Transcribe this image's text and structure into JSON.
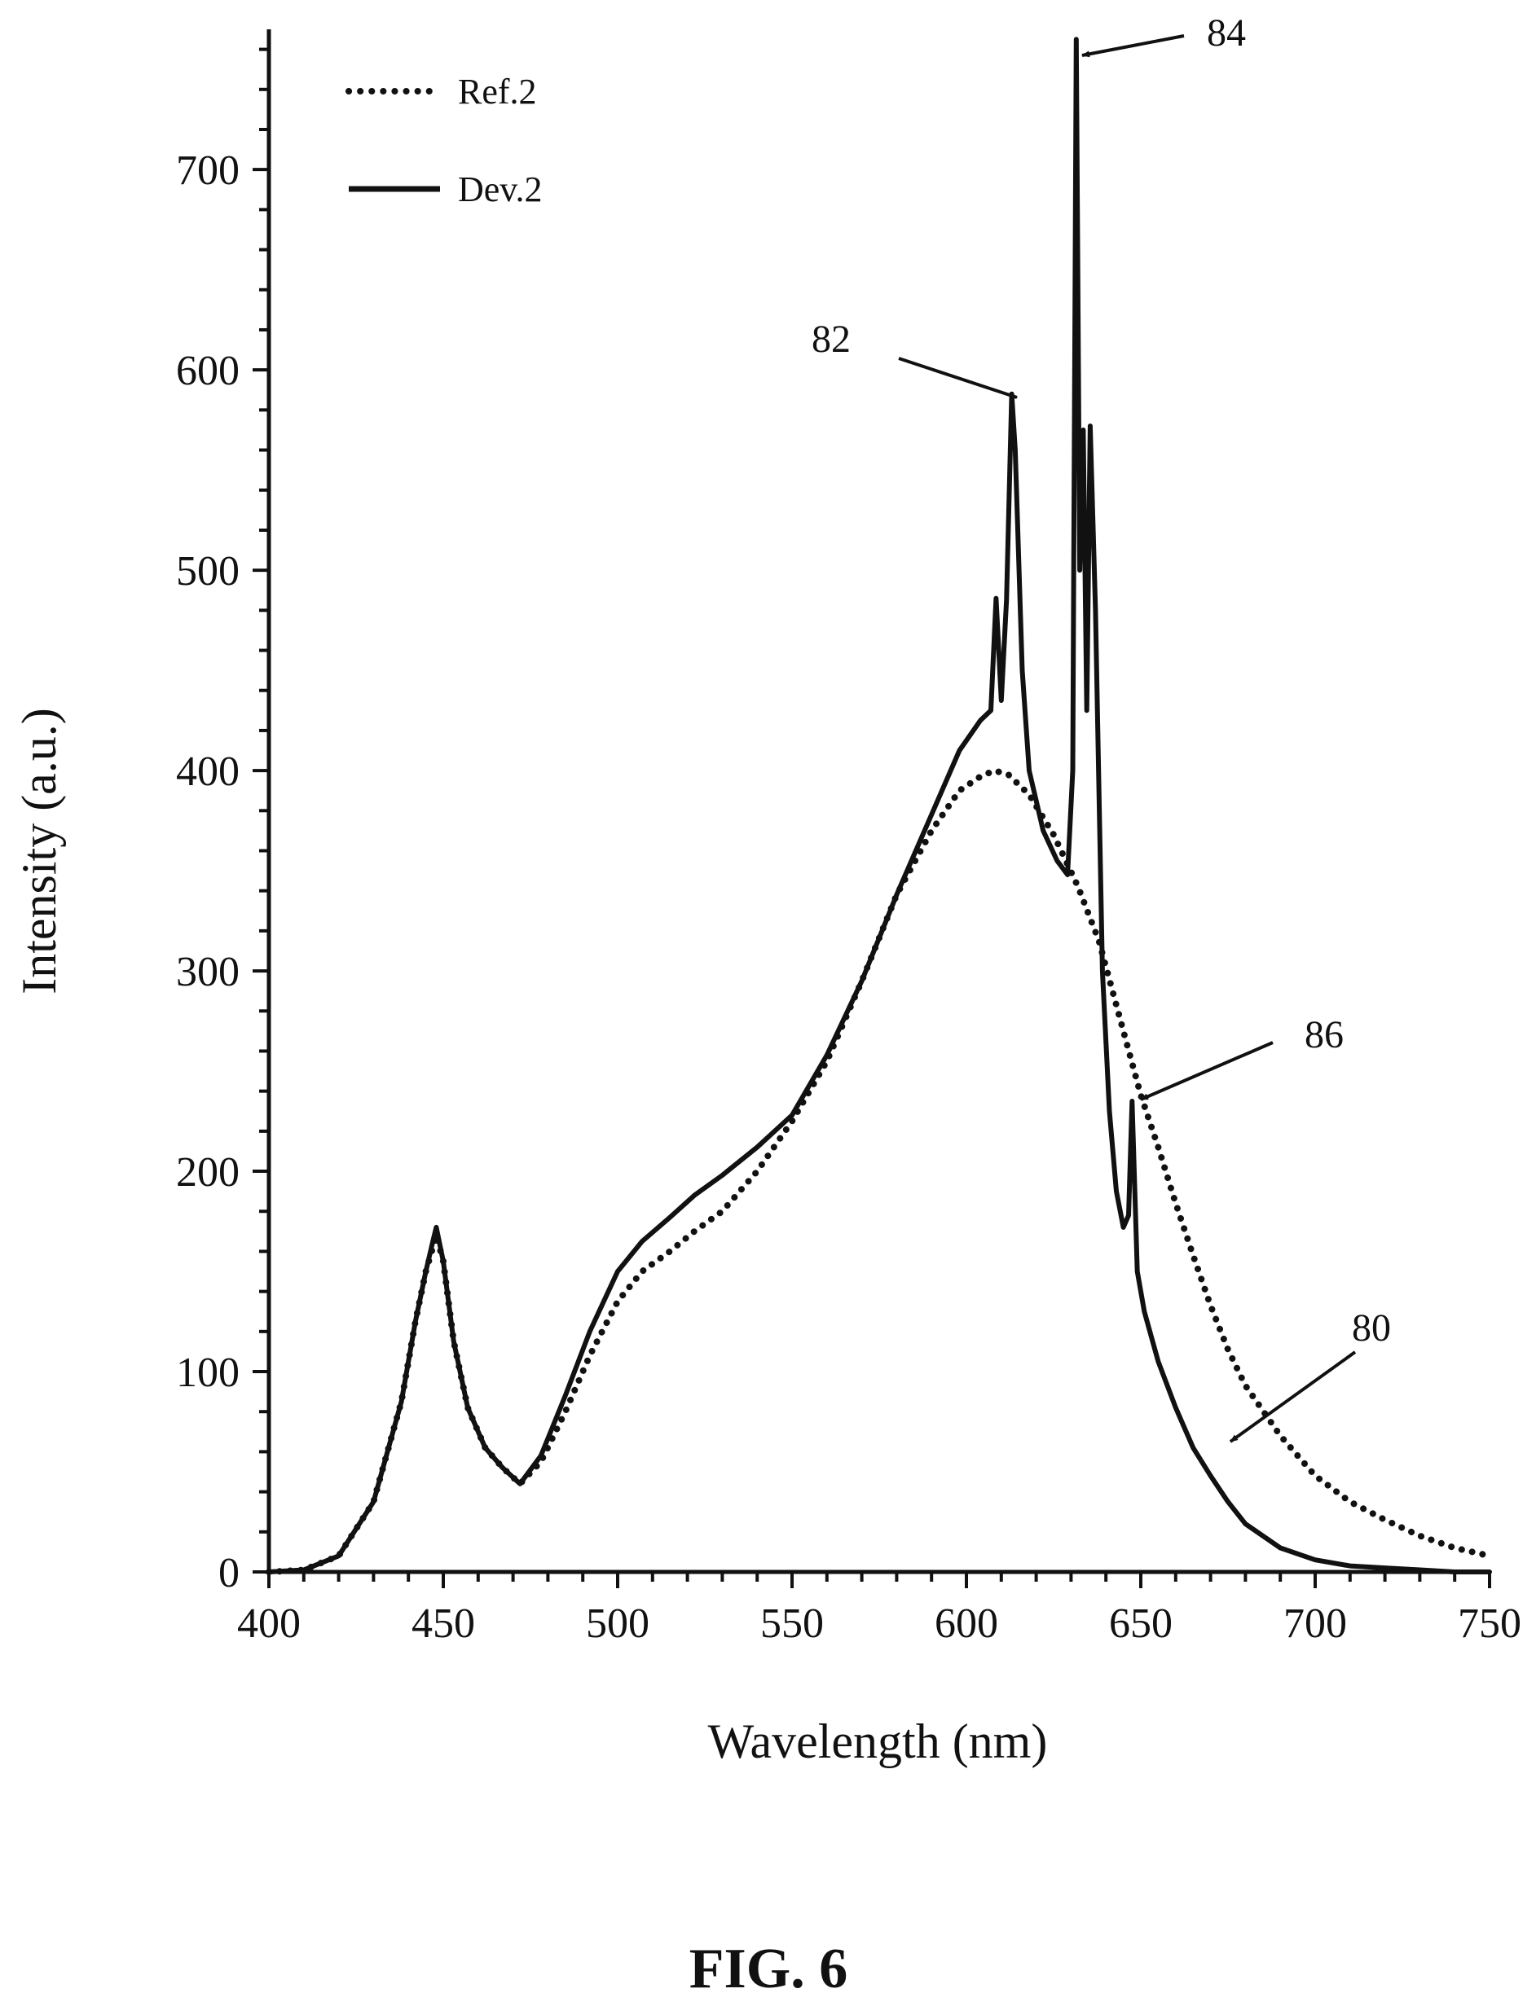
{
  "figure": {
    "caption": "FIG. 6"
  },
  "chart_data": {
    "type": "line",
    "xlabel": "Wavelength (nm)",
    "ylabel": "Intensity (a.u.)",
    "xlim": [
      400,
      750
    ],
    "ylim": [
      0,
      770
    ],
    "xticks": [
      400,
      450,
      500,
      550,
      600,
      650,
      700,
      750
    ],
    "yticks": [
      0,
      100,
      200,
      300,
      400,
      500,
      600,
      700
    ],
    "grid": false,
    "legend": {
      "placement": "top-left"
    },
    "series": [
      {
        "name": "Ref.2",
        "style": "dotted",
        "x": [
          400,
          410,
          420,
          430,
          438,
          442,
          445,
          447,
          448,
          450,
          453,
          457,
          462,
          467,
          472,
          478,
          485,
          492,
          500,
          507,
          515,
          522,
          530,
          540,
          550,
          560,
          570,
          580,
          590,
          598,
          604,
          608,
          612,
          618,
          625,
          632,
          638,
          645,
          650,
          655,
          660,
          665,
          670,
          675,
          680,
          690,
          700,
          710,
          720,
          730,
          740,
          750
        ],
        "y": [
          0,
          1,
          8,
          35,
          85,
          125,
          150,
          162,
          168,
          155,
          115,
          82,
          62,
          52,
          44,
          55,
          80,
          108,
          135,
          150,
          160,
          170,
          180,
          200,
          225,
          255,
          295,
          338,
          370,
          390,
          397,
          400,
          398,
          388,
          368,
          342,
          315,
          270,
          238,
          212,
          184,
          158,
          133,
          111,
          93,
          68,
          48,
          35,
          26,
          18,
          12,
          8
        ]
      },
      {
        "name": "Dev.2",
        "style": "solid",
        "x": [
          400,
          410,
          420,
          430,
          438,
          442,
          445,
          447,
          448,
          450,
          453,
          457,
          462,
          467,
          472,
          478,
          485,
          492,
          500,
          507,
          515,
          522,
          530,
          540,
          550,
          560,
          570,
          580,
          590,
          598,
          604,
          607,
          608.5,
          610,
          611.5,
          613,
          614,
          616,
          618,
          622,
          626,
          629,
          630.5,
          631.5,
          632.5,
          633.5,
          634.5,
          635.5,
          637,
          639,
          641,
          643,
          645,
          646.5,
          647.5,
          649,
          651,
          655,
          660,
          665,
          670,
          675,
          680,
          690,
          700,
          710,
          720,
          730,
          740,
          750
        ],
        "y": [
          0,
          1,
          8,
          35,
          85,
          125,
          150,
          165,
          172,
          155,
          115,
          82,
          62,
          52,
          44,
          58,
          88,
          120,
          150,
          165,
          177,
          188,
          198,
          212,
          228,
          258,
          295,
          338,
          378,
          410,
          425,
          430,
          486,
          435,
          485,
          588,
          560,
          450,
          400,
          370,
          355,
          348,
          400,
          765,
          500,
          570,
          430,
          572,
          480,
          300,
          230,
          190,
          172,
          178,
          235,
          150,
          130,
          105,
          82,
          62,
          48,
          35,
          24,
          12,
          6,
          3,
          2,
          1,
          0,
          0
        ]
      }
    ],
    "annotations": [
      {
        "label": "82"
      },
      {
        "label": "84"
      },
      {
        "label": "86"
      },
      {
        "label": "80"
      }
    ]
  }
}
